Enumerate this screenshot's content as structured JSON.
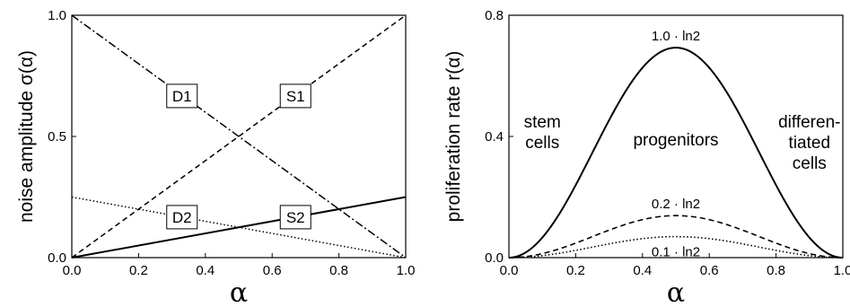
{
  "chart_data": [
    {
      "type": "line",
      "xlabel": "α",
      "ylabel": "noise amplitude σ(α)",
      "xlim": [
        0,
        1
      ],
      "ylim": [
        0,
        1
      ],
      "xticks": [
        "0.0",
        "0.2",
        "0.4",
        "0.6",
        "0.8",
        "1.0"
      ],
      "yticks": [
        "0.0",
        "0.5",
        "1.0"
      ],
      "series": [
        {
          "name": "S1",
          "style": "dashed",
          "x": [
            0,
            1
          ],
          "y": [
            0,
            1
          ]
        },
        {
          "name": "D1",
          "style": "dash-dot",
          "x": [
            0,
            1
          ],
          "y": [
            1,
            0
          ]
        },
        {
          "name": "S2",
          "style": "solid",
          "x": [
            0,
            1
          ],
          "y": [
            0,
            0.25
          ]
        },
        {
          "name": "D2",
          "style": "dotted",
          "x": [
            0,
            1
          ],
          "y": [
            0.25,
            0
          ]
        }
      ],
      "labels": [
        {
          "text": "D1",
          "x": 0.33,
          "y": 0.667
        },
        {
          "text": "S1",
          "x": 0.67,
          "y": 0.667
        },
        {
          "text": "D2",
          "x": 0.33,
          "y": 0.167
        },
        {
          "text": "S2",
          "x": 0.67,
          "y": 0.167
        }
      ]
    },
    {
      "type": "line",
      "xlabel": "α",
      "ylabel": "proliferation rate r(α)",
      "xlim": [
        0,
        1
      ],
      "ylim": [
        0,
        0.8
      ],
      "xticks": [
        "0.0",
        "0.2",
        "0.4",
        "0.6",
        "0.8",
        "1.0"
      ],
      "yticks": [
        "0.0",
        "0.4",
        "0.8"
      ],
      "series": [
        {
          "name": "1.0 · ln2",
          "style": "solid",
          "amplitude": 0.693,
          "shape": "sin^2(pi*alpha)"
        },
        {
          "name": "0.2 · ln2",
          "style": "dashed",
          "amplitude": 0.1386,
          "shape": "sin^2(pi*alpha)"
        },
        {
          "name": "0.1 · ln2",
          "style": "dotted",
          "amplitude": 0.0693,
          "shape": "sin^2(pi*alpha)"
        }
      ],
      "annotations": [
        {
          "lines": [
            "stem",
            "cells"
          ],
          "x": 0.1,
          "y": 0.43
        },
        {
          "lines": [
            "progenitors"
          ],
          "x": 0.5,
          "y": 0.37
        },
        {
          "lines": [
            "differen-",
            "tiated",
            "cells"
          ],
          "x": 0.9,
          "y": 0.43
        }
      ]
    }
  ]
}
